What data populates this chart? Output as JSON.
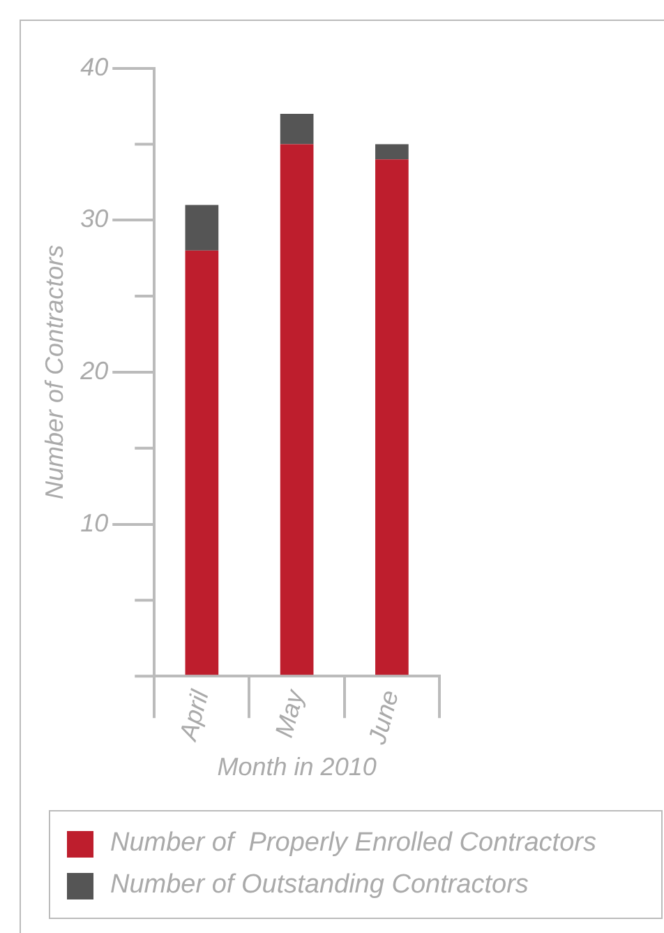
{
  "chart_data": {
    "type": "bar",
    "stacked": true,
    "xlabel": "Month in 2010",
    "ylabel": "Number of Contractors",
    "categories": [
      "April",
      "May",
      "June"
    ],
    "series": [
      {
        "name": "Number of  Properly Enrolled Contractors",
        "color": "#be1e2d",
        "values": [
          28,
          35,
          34
        ]
      },
      {
        "name": "Number of Outstanding Contractors",
        "color": "#555555",
        "values": [
          3,
          2,
          1
        ]
      }
    ],
    "ylim": [
      0,
      40
    ],
    "yticks": [
      {
        "value": 0,
        "label": null
      },
      {
        "value": 5,
        "label": null
      },
      10,
      {
        "value": 15,
        "label": null
      },
      20,
      {
        "value": 25,
        "label": null
      },
      30,
      {
        "value": 35,
        "label": null
      },
      40
    ],
    "grid": false,
    "legend": "bottom"
  }
}
